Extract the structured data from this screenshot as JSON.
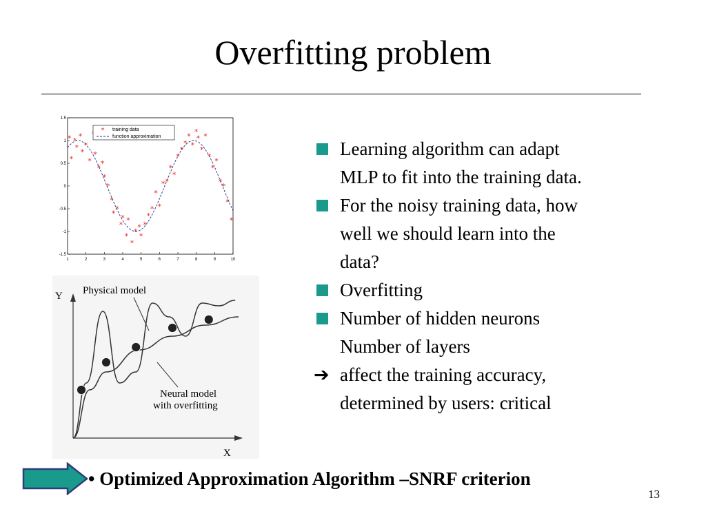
{
  "slide": {
    "title": "Overfitting problem",
    "page_number": "13",
    "bullets": [
      {
        "lines": [
          "Learning algorithm can adapt",
          "MLP to fit into the training data."
        ]
      },
      {
        "lines": [
          "For the noisy training data, how",
          "well we should learn into the",
          "data?"
        ]
      },
      {
        "lines": [
          "Overfitting"
        ]
      },
      {
        "lines": [
          "Number of hidden neurons",
          "Number of layers"
        ]
      }
    ],
    "arrow_item": {
      "arrow": "➔",
      "lines": [
        "affect the training accuracy,",
        "determined by users: critical"
      ]
    },
    "bottom_line": {
      "bullet": "•",
      "text": "Optimized Approximation Algorithm –SNRF criterion"
    },
    "accent_color": "#1a9a8c"
  },
  "chart_data": [
    {
      "type": "scatter",
      "title": "",
      "xlabel": "",
      "ylabel": "",
      "xlim": [
        1,
        10
      ],
      "ylim": [
        -1.5,
        1.5
      ],
      "xticks": [
        "1",
        "2",
        "3",
        "4",
        "5",
        "6",
        "7",
        "8",
        "9",
        "10"
      ],
      "yticks": [
        "1.5",
        "1",
        "0.5",
        "0",
        "-0.5",
        "-1",
        "-1.5"
      ],
      "legend": {
        "placement": "top-left",
        "entries": [
          "training data",
          "function approximation"
        ]
      },
      "grid": false,
      "series": [
        {
          "name": "training data",
          "marker": "*",
          "color": "#e8241e",
          "x": [
            1.1,
            1.2,
            1.4,
            1.5,
            1.7,
            1.8,
            2.0,
            2.2,
            2.4,
            2.5,
            2.7,
            2.9,
            3.0,
            3.2,
            3.4,
            3.5,
            3.7,
            3.9,
            4.0,
            4.2,
            4.3,
            4.5,
            4.7,
            4.9,
            5.0,
            5.2,
            5.4,
            5.6,
            5.8,
            6.0,
            6.2,
            6.4,
            6.6,
            6.8,
            7.0,
            7.2,
            7.4,
            7.6,
            7.8,
            8.0,
            8.1,
            8.3,
            8.5,
            8.7,
            8.9,
            9.1,
            9.3,
            9.5,
            9.7,
            9.9
          ],
          "y": [
            1.05,
            0.6,
            1.0,
            0.85,
            1.1,
            0.75,
            0.9,
            0.55,
            1.15,
            0.7,
            0.4,
            0.5,
            0.2,
            0.0,
            -0.3,
            -0.6,
            -0.5,
            -0.85,
            -0.7,
            -1.1,
            -0.75,
            -1.25,
            -1.0,
            -0.9,
            -1.1,
            -0.85,
            -0.65,
            -0.5,
            -0.15,
            -0.45,
            0.05,
            0.1,
            0.4,
            0.25,
            0.65,
            0.8,
            0.95,
            1.1,
            0.9,
            1.2,
            1.05,
            0.8,
            1.1,
            0.65,
            0.4,
            0.55,
            0.1,
            0.0,
            -0.35,
            -0.75
          ]
        },
        {
          "name": "function approximation",
          "line": "dashed",
          "color": "#1e2a8c",
          "function": "sin",
          "x_range": [
            1,
            10
          ]
        }
      ]
    },
    {
      "type": "line",
      "title": "",
      "xlabel": "X",
      "ylabel": "Y",
      "labels": [
        "Physical model",
        "Neural model",
        "with overfitting"
      ],
      "series": [
        {
          "name": "Physical model",
          "x": [
            0.0,
            0.1,
            0.2,
            0.4,
            0.6,
            0.8,
            1.0
          ],
          "y": [
            0.0,
            0.35,
            0.48,
            0.64,
            0.74,
            0.82,
            0.88
          ]
        },
        {
          "name": "Neural model with overfitting",
          "x": [
            0.0,
            0.08,
            0.18,
            0.28,
            0.38,
            0.48,
            0.58,
            0.68,
            0.78,
            0.88,
            0.98
          ],
          "y": [
            0.0,
            0.4,
            0.92,
            0.4,
            0.48,
            0.98,
            0.88,
            0.74,
            0.98,
            0.96,
            1.0
          ]
        },
        {
          "name": "training points",
          "marker": "circle",
          "x": [
            0.05,
            0.2,
            0.38,
            0.6,
            0.82
          ],
          "y": [
            0.35,
            0.55,
            0.66,
            0.8,
            0.86
          ]
        }
      ]
    }
  ]
}
